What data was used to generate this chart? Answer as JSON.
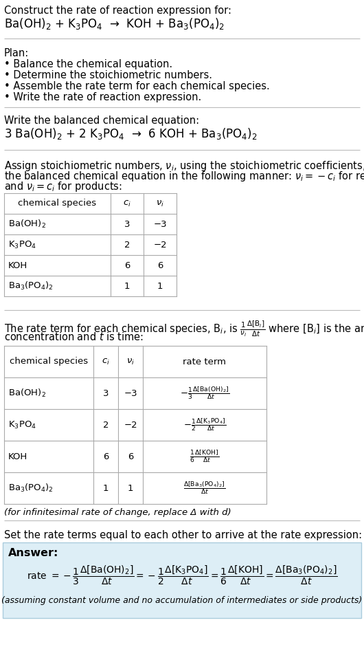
{
  "bg_color": "#ffffff",
  "text_color": "#000000",
  "answer_bg": "#ddeef6",
  "answer_border": "#aaccdd",
  "fs": 10.5,
  "fs_sm": 9.5,
  "sections": {
    "title1": "Construct the rate of reaction expression for:",
    "reaction_unbalanced": "Ba(OH)$_2$ + K$_3$PO$_4$  →  KOH + Ba$_3$(PO$_4$)$_2$",
    "plan_header": "Plan:",
    "plan_items": [
      "• Balance the chemical equation.",
      "• Determine the stoichiometric numbers.",
      "• Assemble the rate term for each chemical species.",
      "• Write the rate of reaction expression."
    ],
    "balanced_header": "Write the balanced chemical equation:",
    "balanced_eq": "3 Ba(OH)$_2$ + 2 K$_3$PO$_4$  →  6 KOH + Ba$_3$(PO$_4$)$_2$",
    "stoich_text": [
      "Assign stoichiometric numbers, $\\nu_i$, using the stoichiometric coefficients, $c_i$, from",
      "the balanced chemical equation in the following manner: $\\nu_i = -c_i$ for reactants",
      "and $\\nu_i = c_i$ for products:"
    ],
    "table1_headers": [
      "chemical species",
      "$c_i$",
      "$\\nu_i$"
    ],
    "table1_rows": [
      [
        "Ba(OH)$_2$",
        "3",
        "−3"
      ],
      [
        "K$_3$PO$_4$",
        "2",
        "−2"
      ],
      [
        "KOH",
        "6",
        "6"
      ],
      [
        "Ba$_3$(PO$_4$)$_2$",
        "1",
        "1"
      ]
    ],
    "rate_text": [
      "The rate term for each chemical species, B$_i$, is $\\frac{1}{\\nu_i}\\frac{\\Delta[\\mathrm{B}_i]}{\\Delta t}$ where [B$_i$] is the amount",
      "concentration and $t$ is time:"
    ],
    "table2_headers": [
      "chemical species",
      "$c_i$",
      "$\\nu_i$",
      "rate term"
    ],
    "table2_rows": [
      [
        "Ba(OH)$_2$",
        "3",
        "−3",
        "$-\\frac{1}{3}\\frac{\\Delta[\\mathrm{Ba(OH)_2}]}{\\Delta t}$"
      ],
      [
        "K$_3$PO$_4$",
        "2",
        "−2",
        "$-\\frac{1}{2}\\frac{\\Delta[\\mathrm{K_3PO_4}]}{\\Delta t}$"
      ],
      [
        "KOH",
        "6",
        "6",
        "$\\frac{1}{6}\\frac{\\Delta[\\mathrm{KOH}]}{\\Delta t}$"
      ],
      [
        "Ba$_3$(PO$_4$)$_2$",
        "1",
        "1",
        "$\\frac{\\Delta[\\mathrm{Ba_3(PO_4)_2}]}{\\Delta t}$"
      ]
    ],
    "infinitesimal": "(for infinitesimal rate of change, replace Δ with d)",
    "set_header": "Set the rate terms equal to each other to arrive at the rate expression:",
    "answer_label": "Answer:",
    "rate_expr_parts": [
      "rate $= -\\dfrac{1}{3}\\dfrac{\\Delta[\\mathrm{Ba(OH)_2}]}{\\Delta t}$",
      "$= -\\dfrac{1}{2}\\dfrac{\\Delta[\\mathrm{K_3PO_4}]}{\\Delta t}$",
      "$= \\dfrac{1}{6}\\dfrac{\\Delta[\\mathrm{KOH}]}{\\Delta t}$",
      "$= \\dfrac{\\Delta[\\mathrm{Ba_3(PO_4)_2}]}{\\Delta t}$"
    ],
    "answer_note": "(assuming constant volume and no accumulation of intermediates or side products)"
  }
}
